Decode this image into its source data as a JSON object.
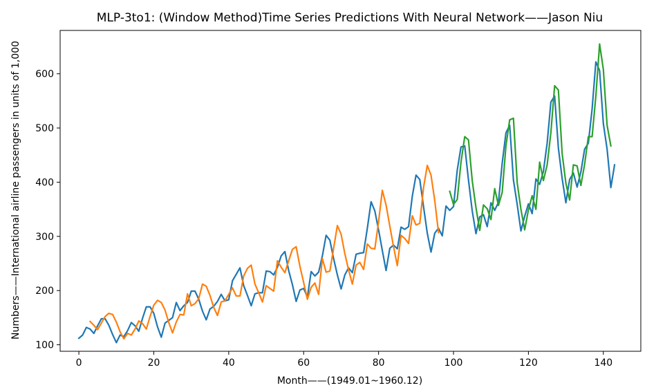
{
  "chart_data": {
    "type": "line",
    "title": "MLP-3to1: (Window Method)Time Series Predictions With Neural Network——Jason Niu",
    "xlabel": "Month——(1949.01~1960.12)",
    "ylabel": "Numbers——International airline passengers in units of 1,000",
    "xlim": [
      -5,
      150
    ],
    "ylim": [
      88,
      680
    ],
    "xticks": [
      0,
      20,
      40,
      60,
      80,
      100,
      120,
      140
    ],
    "yticks": [
      100,
      200,
      300,
      400,
      500,
      600
    ],
    "grid": false,
    "legend": "none",
    "series": [
      {
        "color": "#1f77b4",
        "x0": 0,
        "values": [
          112,
          118,
          132,
          129,
          121,
          135,
          148,
          148,
          136,
          119,
          104,
          118,
          115,
          126,
          141,
          135,
          125,
          149,
          170,
          170,
          158,
          133,
          114,
          140,
          145,
          150,
          178,
          163,
          172,
          178,
          199,
          199,
          184,
          162,
          146,
          166,
          171,
          180,
          193,
          181,
          183,
          218,
          230,
          242,
          209,
          191,
          172,
          194,
          196,
          196,
          236,
          235,
          229,
          243,
          264,
          272,
          237,
          211,
          180,
          201,
          204,
          188,
          235,
          227,
          234,
          264,
          302,
          293,
          259,
          229,
          203,
          229,
          242,
          233,
          267,
          269,
          270,
          315,
          364,
          347,
          312,
          274,
          237,
          278,
          284,
          277,
          317,
          313,
          318,
          374,
          413,
          405,
          355,
          306,
          271,
          306,
          315,
          301,
          356,
          348,
          355,
          422,
          465,
          467,
          404,
          347,
          305,
          336,
          340,
          318,
          362,
          348,
          363,
          435,
          491,
          505,
          404,
          359,
          310,
          337,
          360,
          342,
          406,
          396,
          420,
          472,
          548,
          559,
          463,
          407,
          362,
          405,
          417,
          391,
          419,
          461,
          472,
          535,
          622,
          606,
          508,
          461,
          390,
          432
        ]
      },
      {
        "color": "#ff7f0e",
        "x0": 3,
        "values": [
          143,
          136,
          128,
          140,
          152,
          158,
          156,
          142,
          124,
          111,
          121,
          118,
          129,
          144,
          139,
          129,
          152,
          173,
          182,
          178,
          164,
          141,
          122,
          142,
          156,
          155,
          194,
          172,
          176,
          185,
          212,
          208,
          191,
          169,
          154,
          179,
          181,
          193,
          205,
          190,
          190,
          227,
          241,
          247,
          212,
          196,
          179,
          209,
          204,
          199,
          255,
          243,
          233,
          255,
          276,
          281,
          245,
          215,
          184,
          206,
          214,
          193,
          259,
          234,
          236,
          278,
          320,
          304,
          268,
          238,
          212,
          247,
          252,
          239,
          286,
          278,
          277,
          327,
          385,
          358,
          319,
          281,
          246,
          302,
          296,
          287,
          338,
          321,
          324,
          390,
          431,
          413,
          366,
          307
        ]
      },
      {
        "color": "#2ca02c",
        "x0": 99,
        "values": [
          383,
          359,
          368,
          437,
          484,
          478,
          403,
          353,
          311,
          358,
          351,
          331,
          388,
          357,
          381,
          467,
          515,
          518,
          399,
          350,
          312,
          349,
          375,
          350,
          437,
          403,
          432,
          492,
          578,
          570,
          453,
          398,
          367,
          432,
          430,
          394,
          433,
          484,
          484,
          559,
          655,
          608,
          505,
          467
        ]
      }
    ]
  }
}
